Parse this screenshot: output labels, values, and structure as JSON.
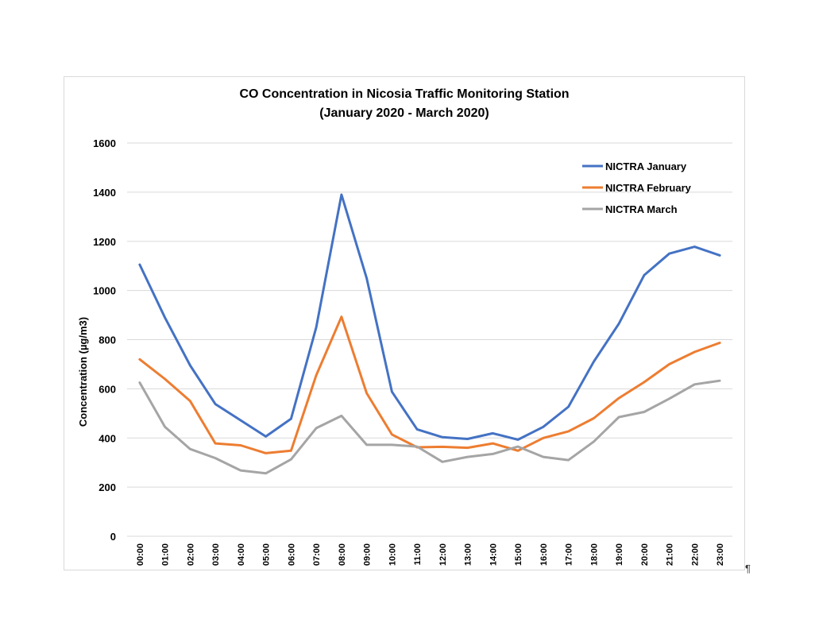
{
  "pilcrow": "¶",
  "chart_data": {
    "type": "line",
    "title": "CO Concentration in Nicosia Traffic Monitoring Station",
    "subtitle": "(January 2020 - March 2020)",
    "xlabel": "",
    "ylabel": "Concentration  (µg/m3)",
    "ylim": [
      0,
      1600
    ],
    "yticks": [
      0,
      200,
      400,
      600,
      800,
      1000,
      1200,
      1400,
      1600
    ],
    "grid": true,
    "legend_position": "top-right",
    "categories": [
      "00:00",
      "01:00",
      "02:00",
      "03:00",
      "04:00",
      "05:00",
      "06:00",
      "07:00",
      "08:00",
      "09:00",
      "10:00",
      "11:00",
      "12:00",
      "13:00",
      "14:00",
      "15:00",
      "16:00",
      "17:00",
      "18:00",
      "19:00",
      "20:00",
      "21:00",
      "22:00",
      "23:00"
    ],
    "series": [
      {
        "name": "NICTRA January",
        "color": "#4472c4",
        "values": [
          1105,
          890,
          695,
          538,
          472,
          406,
          478,
          850,
          1390,
          1050,
          588,
          435,
          403,
          396,
          419,
          393,
          445,
          527,
          710,
          865,
          1062,
          1150,
          1178,
          1143
        ]
      },
      {
        "name": "NICTRA February",
        "color": "#ed7d31",
        "values": [
          720,
          640,
          550,
          378,
          370,
          338,
          348,
          655,
          893,
          582,
          414,
          362,
          364,
          360,
          378,
          348,
          400,
          427,
          480,
          562,
          627,
          700,
          750,
          787
        ]
      },
      {
        "name": "NICTRA March",
        "color": "#a5a5a5",
        "values": [
          625,
          445,
          355,
          318,
          268,
          256,
          313,
          440,
          490,
          372,
          372,
          365,
          303,
          323,
          335,
          365,
          323,
          310,
          385,
          485,
          506,
          560,
          618,
          633
        ]
      }
    ]
  }
}
